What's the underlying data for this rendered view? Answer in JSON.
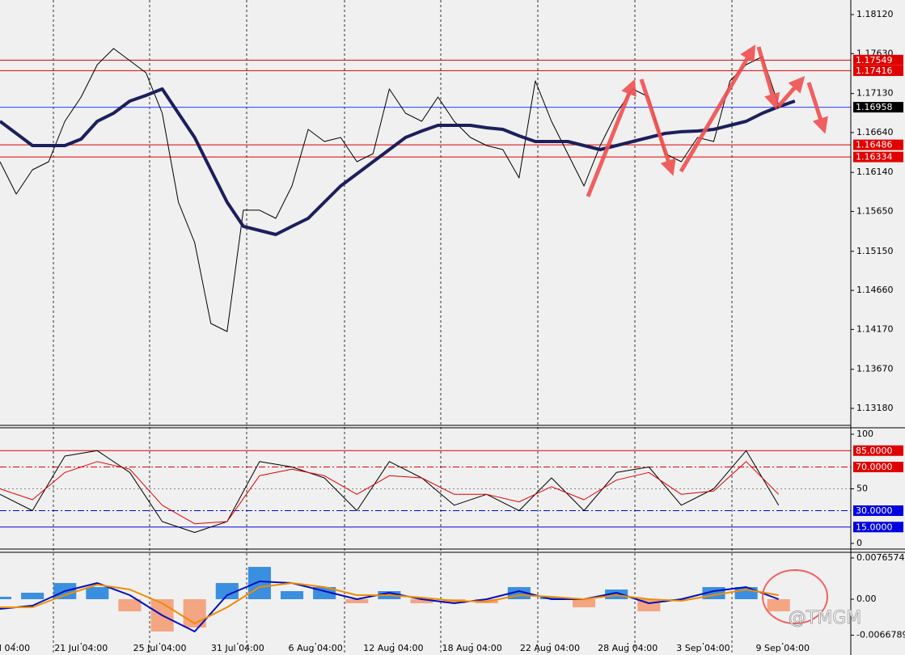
{
  "chart_data": [
    {
      "type": "line",
      "xlim": [
        0,
        52.45
      ],
      "ylim": [
        1.12977,
        1.18303
      ],
      "yticks": [
        {
          "value": 1.1812,
          "label": "1.18120"
        },
        {
          "value": 1.1763,
          "label": "1.17630"
        },
        {
          "value": 1.1713,
          "label": "1.17130"
        },
        {
          "value": 1.1664,
          "label": "1.16640"
        },
        {
          "value": 1.1614,
          "label": "1.16140"
        },
        {
          "value": 1.1565,
          "label": "1.15650"
        },
        {
          "value": 1.1515,
          "label": "1.15150"
        },
        {
          "value": 1.1466,
          "label": "1.14660"
        },
        {
          "value": 1.1417,
          "label": "1.14170"
        },
        {
          "value": 1.1367,
          "label": "1.13670"
        },
        {
          "value": 1.1318,
          "label": "1.13180"
        }
      ],
      "series": [
        {
          "color": "#000000",
          "width": 1,
          "values": [
            1.16274,
            1.15868,
            1.16173,
            1.16274,
            1.16781,
            1.17086,
            1.17491,
            1.17694,
            1.17542,
            1.1739,
            1.16883,
            1.15767,
            1.1526,
            1.14245,
            1.14144,
            1.15666,
            1.15666,
            1.15564,
            1.1597,
            1.1668,
            1.16528,
            1.16578,
            1.16274,
            1.16376,
            1.17187,
            1.16883,
            1.16781,
            1.17086,
            1.16781,
            1.16578,
            1.16477,
            1.16426,
            1.16071,
            1.17289,
            1.16781,
            1.16376,
            1.1597,
            1.16477,
            1.16883,
            1.17187,
            1.17086,
            1.16376,
            1.16274,
            1.16578,
            1.16528,
            1.17289,
            1.17491,
            1.17593,
            1.16984,
            1.17035
          ]
        },
        {
          "color": "#1c1f5c",
          "width": 4,
          "values": [
            1.16781,
            1.16629,
            1.16477,
            1.16477,
            1.16477,
            1.16558,
            1.16781,
            1.16883,
            1.17035,
            1.17106,
            1.17187,
            1.16883,
            1.16578,
            1.16173,
            1.15767,
            1.15463,
            1.15412,
            1.15361,
            1.15463,
            1.15564,
            1.15767,
            1.1597,
            1.16122,
            1.16274,
            1.16426,
            1.16578,
            1.1666,
            1.16731,
            1.16731,
            1.16731,
            1.167,
            1.1668,
            1.16599,
            1.16528,
            1.16528,
            1.16528,
            1.16477,
            1.16426,
            1.16477,
            1.16528,
            1.16578,
            1.16629,
            1.1665,
            1.1666,
            1.1668,
            1.16731,
            1.16781,
            1.16883,
            1.16964,
            1.17035
          ]
        }
      ],
      "hlines": [
        {
          "value": 1.17549,
          "color": "#e00000",
          "box": "#e00000"
        },
        {
          "value": 1.17416,
          "color": "#e00000",
          "box": "#e00000"
        },
        {
          "value": 1.16958,
          "color": "#2040ff",
          "box": "#000000"
        },
        {
          "value": 1.16486,
          "color": "#e00000",
          "box": "#e00000"
        },
        {
          "value": 1.16334,
          "color": "#e00000",
          "box": "#e00000"
        }
      ]
    },
    {
      "type": "line",
      "xlim": [
        0,
        26.225
      ],
      "ylim": [
        -4.44,
        105.93
      ],
      "yticks": [
        100,
        50,
        0
      ],
      "series": [
        {
          "color": "#000000",
          "width": 1,
          "values": [
            45,
            30,
            80,
            85,
            65,
            20,
            10,
            20,
            75,
            70,
            60,
            30,
            75,
            60,
            35,
            45,
            30,
            60,
            30,
            65,
            70,
            35,
            50,
            85,
            35
          ]
        },
        {
          "color": "#e00000",
          "width": 1,
          "values": [
            50,
            40,
            65,
            75,
            68,
            35,
            18,
            20,
            62,
            68,
            62,
            45,
            62,
            60,
            45,
            45,
            38,
            52,
            40,
            58,
            65,
            45,
            48,
            75,
            45
          ]
        }
      ],
      "hlines": [
        {
          "value": 85,
          "label": "85.0000",
          "color": "#e00000",
          "box": "#e00000"
        },
        {
          "value": 70,
          "label": "70.0000",
          "color": "#e00000",
          "box": "#e00000",
          "style": "dashdot"
        },
        {
          "value": 50,
          "color": "#888888",
          "style": "dot"
        },
        {
          "value": 30,
          "label": "30.0000",
          "color": "#0000e0",
          "box": "#0000e0",
          "style": "dashdot"
        },
        {
          "value": 15,
          "label": "15.0000",
          "color": "#0000e0",
          "box": "#0000e0"
        }
      ]
    },
    {
      "type": "macd",
      "xlim": [
        0,
        26.225
      ],
      "ylim": [
        -0.00811,
        0.00871
      ],
      "yticks": [
        0.0076574,
        {
          "value": 0,
          "label": "0.00"
        },
        -0.0066789
      ],
      "histogram": {
        "colors": [
          "#3b8fe0",
          "#f4a582"
        ],
        "values": [
          0.00045,
          0.0012,
          0.003,
          0.00225,
          -0.00225,
          -0.006,
          -0.00525,
          0.003,
          0.006,
          0.0015,
          0.00225,
          -0.00075,
          0.0015,
          -0.00075,
          -0.00075,
          -0.00075,
          0.00225,
          0.0003,
          -0.0015,
          0.0018,
          -0.00225,
          0,
          0.00225,
          0.00225,
          -0.00225
        ]
      },
      "series": [
        {
          "color": "#0010c0",
          "width": 2,
          "values": [
            -0.0018,
            -0.0012,
            0.0015,
            0.003,
            0.00075,
            -0.003,
            -0.006,
            0.00075,
            0.0033,
            0.003,
            0.0015,
            0,
            0.0012,
            0,
            -0.00075,
            0,
            0.0015,
            0,
            0,
            0.0012,
            -0.00075,
            0,
            0.0015,
            0.00225,
            0
          ]
        },
        {
          "color": "#f08c00",
          "width": 2,
          "values": [
            -0.0015,
            -0.0015,
            0.00075,
            0.0027,
            0.0018,
            -0.00075,
            -0.0045,
            -0.0015,
            0.00225,
            0.003,
            0.00225,
            0.00075,
            0.00075,
            0.0003,
            -0.0003,
            -0.00045,
            0.00075,
            0.00045,
            0,
            0.00075,
            0,
            -0.0003,
            0.00075,
            0.0018,
            0.00075
          ]
        }
      ],
      "xticks": [
        {
          "value": 0.45,
          "label": "l 04:00"
        },
        {
          "value": 2.5,
          "label": "21 Jul 04:00"
        },
        {
          "value": 4.925,
          "label": "25 Jul 04:00"
        },
        {
          "value": 7.325,
          "label": "31 Jul 04:00"
        },
        {
          "value": 9.725,
          "label": "6 Aug 04:00"
        },
        {
          "value": 12.125,
          "label": "12 Aug 04:00"
        },
        {
          "value": 14.55,
          "label": "18 Aug 04:00"
        },
        {
          "value": 16.95,
          "label": "22 Aug 04:00"
        },
        {
          "value": 19.35,
          "label": "28 Aug 04:00"
        },
        {
          "value": 21.675,
          "label": "3 Sep 04:00"
        },
        {
          "value": 24.125,
          "label": "9 Sep 04:00"
        }
      ],
      "watermark": "@TMGM"
    }
  ]
}
